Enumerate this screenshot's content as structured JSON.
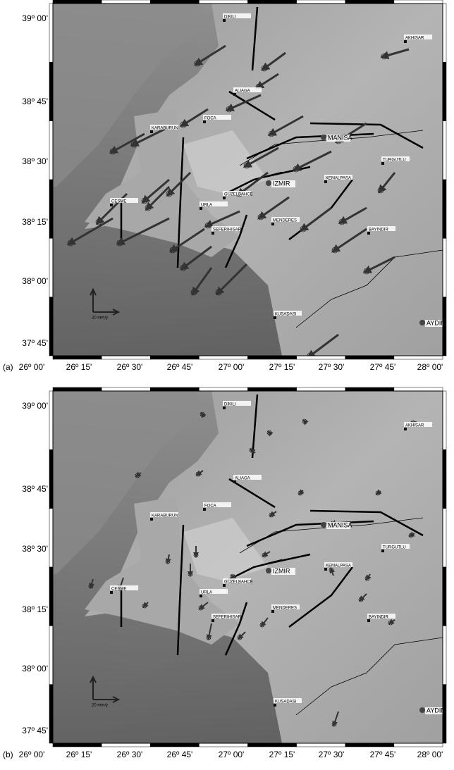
{
  "figure": {
    "panels": [
      {
        "label": "(a)",
        "lat_labels": [
          "39º 00'",
          "38º 45'",
          "38º 30'",
          "38º 15'",
          "38º 00'",
          "37º 45'"
        ],
        "lon_labels": [
          "26º 00'",
          "26º 15'",
          "26º 30'",
          "26º 45'",
          "27º 00'",
          "27º 15'",
          "27º 30'",
          "27º 45'",
          "28º 00'"
        ],
        "places": [
          "DIKILI",
          "AKHISAR",
          "ALIAGA",
          "FOCA",
          "KARABURUN",
          "MANISA",
          "TURGUTLU",
          "KEMALPASA",
          "IZMIR",
          "GUZELBAHCE",
          "CESME",
          "URLA",
          "MENDERES",
          "SEFERIHISAR",
          "BAYINDIR",
          "KUSADASI",
          "AYDIN"
        ],
        "scale_label": "20 mm/y"
      },
      {
        "label": "(b)",
        "lat_labels": [
          "39º 00'",
          "38º 45'",
          "38º 30'",
          "38º 15'",
          "38º 00'",
          "37º 45'"
        ],
        "lon_labels": [
          "26º 00'",
          "26º 15'",
          "26º 30'",
          "26º 45'",
          "27º 00'",
          "27º 15'",
          "27º 30'",
          "27º 45'",
          "28º 00'"
        ],
        "places": [
          "DIKILI",
          "AKHISAR",
          "ALIAGA",
          "FOCA",
          "KARABURUN",
          "MANISA",
          "TURGUTLU",
          "KEMALPASA",
          "IZMIR",
          "GUZELBAHCE",
          "CESME",
          "URLA",
          "MENDERES",
          "SEFERIHISAR",
          "BAYINDIR",
          "KUSADASI",
          "AYDIN"
        ],
        "scale_label": "20 mm/y"
      }
    ]
  }
}
